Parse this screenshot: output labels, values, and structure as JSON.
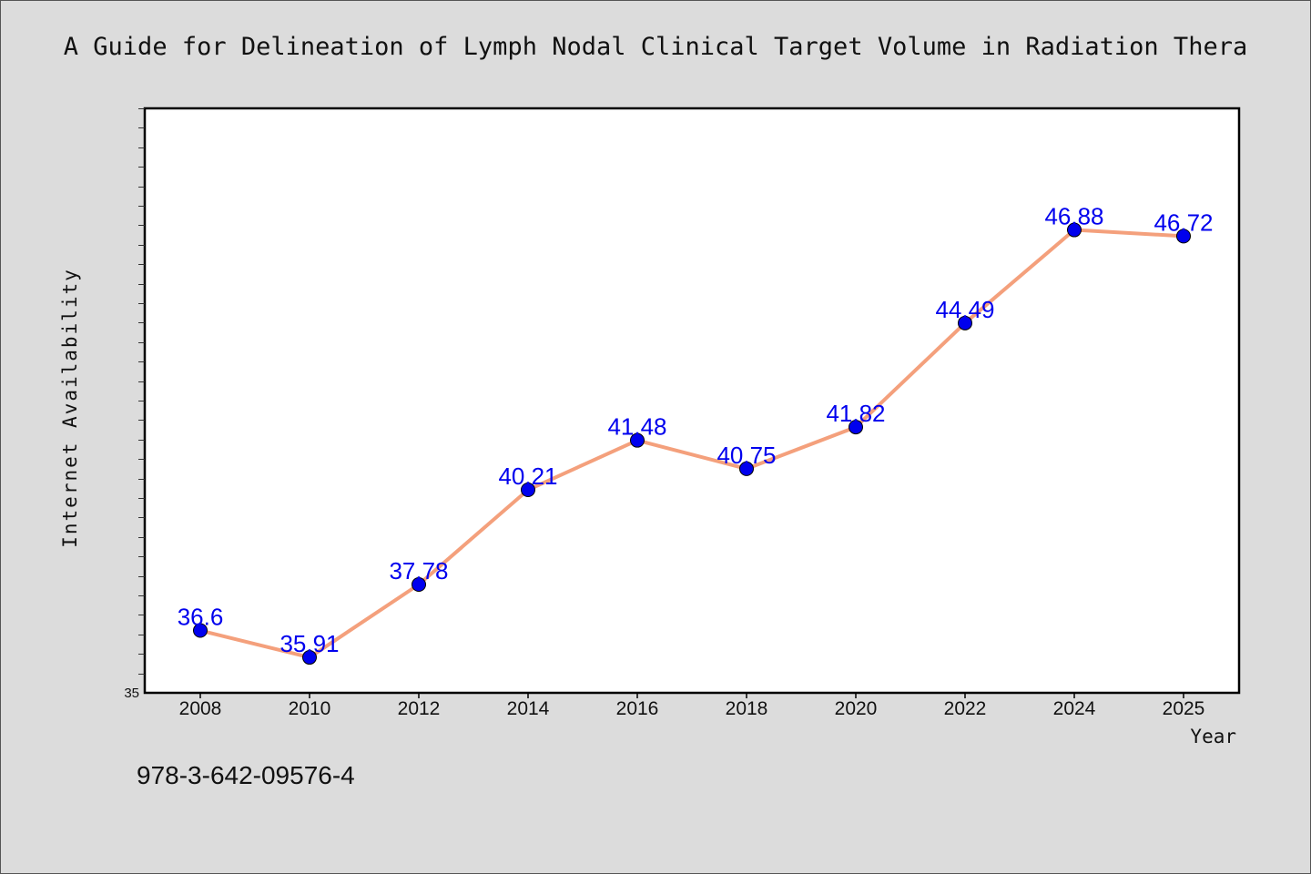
{
  "page": {
    "title": "A Guide for Delineation of Lymph Nodal Clinical Target Volume in Radiation Thera",
    "isbn": "978-3-642-09576-4"
  },
  "chart_data": {
    "type": "line",
    "title": "A Guide for Delineation of Lymph Nodal Clinical Target Volume in Radiation Thera",
    "xlabel": "Year",
    "ylabel": "Internet Availability",
    "categories": [
      "2008",
      "2010",
      "2012",
      "2014",
      "2016",
      "2018",
      "2020",
      "2022",
      "2024",
      "2025"
    ],
    "series": [
      {
        "values": [
          36.6,
          35.91,
          37.78,
          40.21,
          41.48,
          40.75,
          41.82,
          44.49,
          46.88,
          46.72
        ],
        "labels": [
          "36.6",
          "35.91",
          "37.78",
          "40.21",
          "41.48",
          "40.75",
          "41.82",
          "44.49",
          "46.88",
          "46.72"
        ]
      }
    ],
    "ylim": [
      35,
      50
    ],
    "ytick_min_label": "35",
    "grid": false,
    "colors": {
      "line": "#f4a07c",
      "marker": "#0000ee",
      "data_label": "#0000ee",
      "plot_bg": "#ffffff",
      "page_bg": "#dcdcdc"
    }
  }
}
